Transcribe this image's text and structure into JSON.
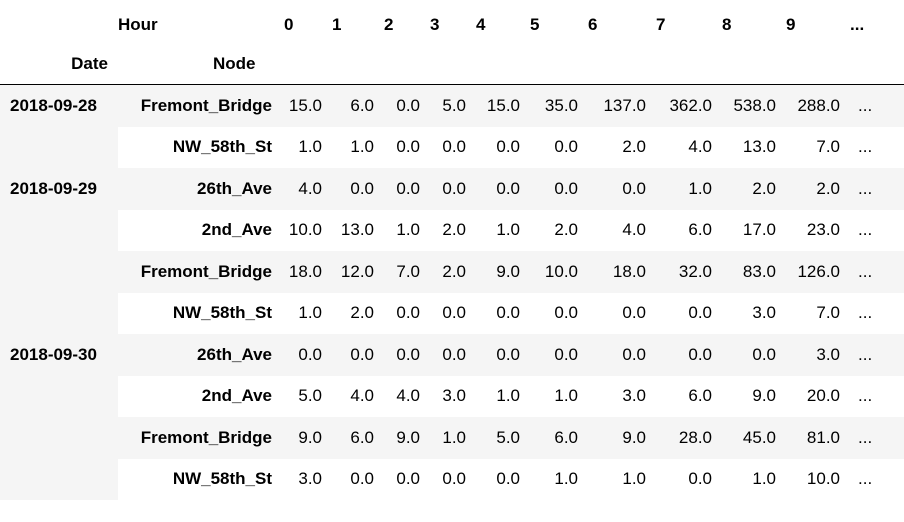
{
  "header": {
    "columns_name": "Hour",
    "columns": [
      "0",
      "1",
      "2",
      "3",
      "4",
      "5",
      "6",
      "7",
      "8",
      "9",
      "..."
    ],
    "index_names": [
      "Date",
      "Node"
    ]
  },
  "rows": [
    {
      "date": "2018-09-28",
      "node": "Fremont_Bridge",
      "values": [
        "15.0",
        "6.0",
        "0.0",
        "5.0",
        "15.0",
        "35.0",
        "137.0",
        "362.0",
        "538.0",
        "288.0",
        "..."
      ]
    },
    {
      "date": "",
      "node": "NW_58th_St",
      "values": [
        "1.0",
        "1.0",
        "0.0",
        "0.0",
        "0.0",
        "0.0",
        "2.0",
        "4.0",
        "13.0",
        "7.0",
        "..."
      ]
    },
    {
      "date": "2018-09-29",
      "node": "26th_Ave",
      "values": [
        "4.0",
        "0.0",
        "0.0",
        "0.0",
        "0.0",
        "0.0",
        "0.0",
        "1.0",
        "2.0",
        "2.0",
        "..."
      ]
    },
    {
      "date": "",
      "node": "2nd_Ave",
      "values": [
        "10.0",
        "13.0",
        "1.0",
        "2.0",
        "1.0",
        "2.0",
        "4.0",
        "6.0",
        "17.0",
        "23.0",
        "..."
      ]
    },
    {
      "date": "",
      "node": "Fremont_Bridge",
      "values": [
        "18.0",
        "12.0",
        "7.0",
        "2.0",
        "9.0",
        "10.0",
        "18.0",
        "32.0",
        "83.0",
        "126.0",
        "..."
      ]
    },
    {
      "date": "",
      "node": "NW_58th_St",
      "values": [
        "1.0",
        "2.0",
        "0.0",
        "0.0",
        "0.0",
        "0.0",
        "0.0",
        "0.0",
        "3.0",
        "7.0",
        "..."
      ]
    },
    {
      "date": "2018-09-30",
      "node": "26th_Ave",
      "values": [
        "0.0",
        "0.0",
        "0.0",
        "0.0",
        "0.0",
        "0.0",
        "0.0",
        "0.0",
        "0.0",
        "3.0",
        "..."
      ]
    },
    {
      "date": "",
      "node": "2nd_Ave",
      "values": [
        "5.0",
        "4.0",
        "4.0",
        "3.0",
        "1.0",
        "1.0",
        "3.0",
        "6.0",
        "9.0",
        "20.0",
        "..."
      ]
    },
    {
      "date": "",
      "node": "Fremont_Bridge",
      "values": [
        "9.0",
        "6.0",
        "9.0",
        "1.0",
        "5.0",
        "6.0",
        "9.0",
        "28.0",
        "45.0",
        "81.0",
        "..."
      ]
    },
    {
      "date": "",
      "node": "NW_58th_St",
      "values": [
        "3.0",
        "0.0",
        "0.0",
        "0.0",
        "0.0",
        "1.0",
        "1.0",
        "0.0",
        "1.0",
        "10.0",
        "..."
      ]
    }
  ]
}
